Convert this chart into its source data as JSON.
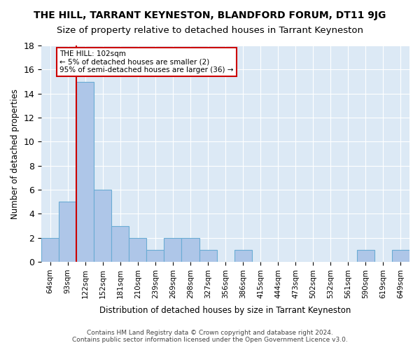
{
  "title": "THE HILL, TARRANT KEYNESTON, BLANDFORD FORUM, DT11 9JG",
  "subtitle": "Size of property relative to detached houses in Tarrant Keyneston",
  "xlabel": "Distribution of detached houses by size in Tarrant Keyneston",
  "ylabel": "Number of detached properties",
  "footer_line1": "Contains HM Land Registry data © Crown copyright and database right 2024.",
  "footer_line2": "Contains public sector information licensed under the Open Government Licence v3.0.",
  "categories": [
    "64sqm",
    "93sqm",
    "122sqm",
    "152sqm",
    "181sqm",
    "210sqm",
    "239sqm",
    "269sqm",
    "298sqm",
    "327sqm",
    "356sqm",
    "386sqm",
    "415sqm",
    "444sqm",
    "473sqm",
    "502sqm",
    "532sqm",
    "561sqm",
    "590sqm",
    "619sqm",
    "649sqm"
  ],
  "values": [
    2,
    5,
    15,
    6,
    3,
    2,
    1,
    2,
    2,
    1,
    0,
    1,
    0,
    0,
    0,
    0,
    0,
    0,
    1,
    0,
    1
  ],
  "bar_color": "#aec6e8",
  "bar_edge_color": "#6aacd4",
  "vline_x": 1.5,
  "vline_color": "#cc0000",
  "annotation_text": "THE HILL: 102sqm\n← 5% of detached houses are smaller (2)\n95% of semi-detached houses are larger (36) →",
  "annotation_box_color": "white",
  "annotation_box_edge": "#cc0000",
  "ylim": [
    0,
    18
  ],
  "yticks": [
    0,
    2,
    4,
    6,
    8,
    10,
    12,
    14,
    16,
    18
  ],
  "background_color": "#dce9f5",
  "title_fontsize": 10,
  "subtitle_fontsize": 9.5
}
